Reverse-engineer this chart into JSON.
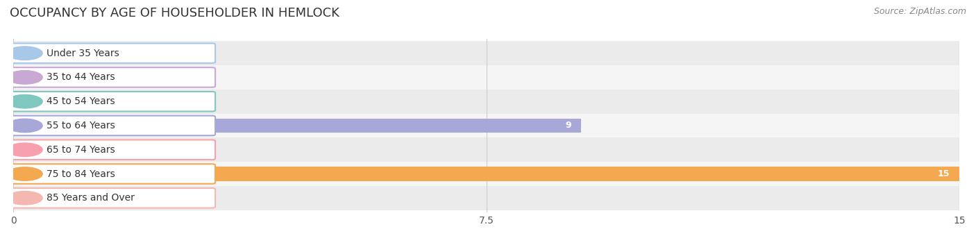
{
  "title": "OCCUPANCY BY AGE OF HOUSEHOLDER IN HEMLOCK",
  "source": "Source: ZipAtlas.com",
  "categories": [
    "Under 35 Years",
    "35 to 44 Years",
    "45 to 54 Years",
    "55 to 64 Years",
    "65 to 74 Years",
    "75 to 84 Years",
    "85 Years and Over"
  ],
  "values": [
    0,
    0,
    0,
    9,
    0,
    15,
    0
  ],
  "bar_colors": [
    "#a8c8e8",
    "#c9a8d4",
    "#7fc8c0",
    "#a8a8d8",
    "#f8a0b0",
    "#f4a850",
    "#f4b8b0"
  ],
  "xlim": [
    0,
    15
  ],
  "xticks": [
    0,
    7.5,
    15
  ],
  "bar_height": 0.6,
  "title_fontsize": 13,
  "label_fontsize": 10,
  "value_fontsize": 9,
  "source_fontsize": 9,
  "fig_width": 14.06,
  "fig_height": 3.4,
  "dpi": 100
}
